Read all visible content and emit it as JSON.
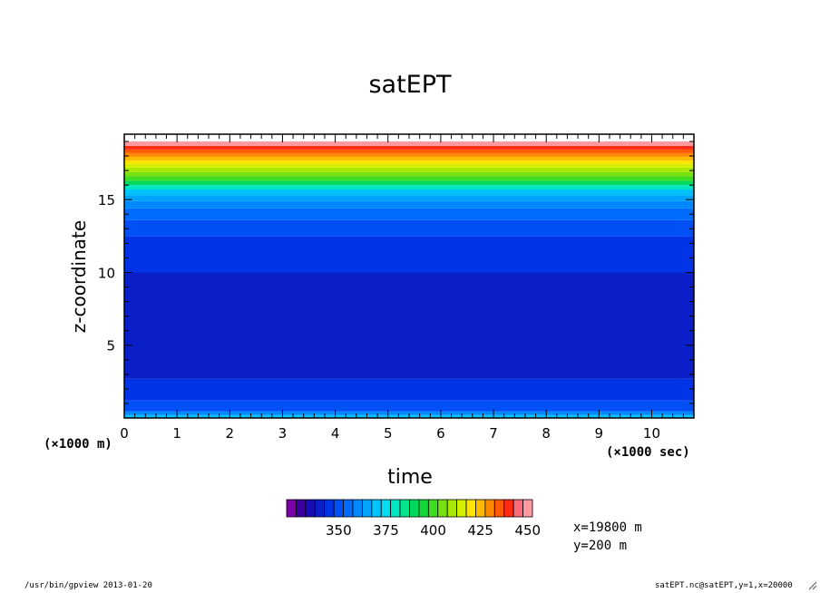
{
  "title": "satEPT",
  "xlabel": "time",
  "ylabel": "z-coordinate",
  "x_unit": "(×1000 sec)",
  "y_unit": "(×1000 m)",
  "info_x": "x=19800  m",
  "info_y": "y=200  m",
  "footer_left": "/usr/bin/gpview  2013-01-20",
  "footer_right": "satEPT.nc@satEPT,y=1,x=20000",
  "chart_data": {
    "type": "heatmap",
    "title": "satEPT",
    "xlabel": "time",
    "ylabel": "z-coordinate",
    "xlim": [
      0,
      10.8
    ],
    "ylim": [
      0,
      19.5
    ],
    "x_ticks": [
      "0",
      "1",
      "2",
      "3",
      "4",
      "5",
      "6",
      "7",
      "8",
      "9",
      "10"
    ],
    "y_ticks": [
      "5",
      "10",
      "15"
    ],
    "colorbar": {
      "ticks": [
        "350",
        "375",
        "400",
        "425",
        "450"
      ],
      "levels": [
        325,
        330,
        335,
        340,
        345,
        350,
        355,
        360,
        365,
        370,
        375,
        380,
        385,
        390,
        395,
        400,
        405,
        410,
        415,
        420,
        425,
        430,
        435,
        440,
        445,
        450
      ],
      "colors": [
        "#7b00a8",
        "#3c00a0",
        "#1a0cb4",
        "#0a1fc8",
        "#0034e6",
        "#0050f5",
        "#006cff",
        "#0088ff",
        "#00a4ff",
        "#00c2ff",
        "#00dcf0",
        "#00e8c0",
        "#00e48e",
        "#00d860",
        "#10d838",
        "#40dc20",
        "#78e010",
        "#a8e800",
        "#d4f000",
        "#ffe400",
        "#ffba00",
        "#ff8a00",
        "#ff5a00",
        "#ff2a10",
        "#ff6a78",
        "#ff9aa0"
      ]
    },
    "bands": [
      {
        "z_low": 0.0,
        "z_high": 0.2,
        "value": 370
      },
      {
        "z_low": 0.2,
        "z_high": 0.45,
        "value": 360
      },
      {
        "z_low": 0.45,
        "z_high": 1.2,
        "value": 350
      },
      {
        "z_low": 1.2,
        "z_high": 2.7,
        "value": 345
      },
      {
        "z_low": 2.7,
        "z_high": 10.0,
        "value": 340
      },
      {
        "z_low": 10.0,
        "z_high": 12.5,
        "value": 345
      },
      {
        "z_low": 12.5,
        "z_high": 13.6,
        "value": 350
      },
      {
        "z_low": 13.6,
        "z_high": 14.4,
        "value": 355
      },
      {
        "z_low": 14.4,
        "z_high": 14.9,
        "value": 360
      },
      {
        "z_low": 14.9,
        "z_high": 15.3,
        "value": 365
      },
      {
        "z_low": 15.3,
        "z_high": 15.7,
        "value": 370
      },
      {
        "z_low": 15.7,
        "z_high": 16.0,
        "value": 380
      },
      {
        "z_low": 16.0,
        "z_high": 16.3,
        "value": 390
      },
      {
        "z_low": 16.3,
        "z_high": 16.6,
        "value": 400
      },
      {
        "z_low": 16.6,
        "z_high": 16.9,
        "value": 405
      },
      {
        "z_low": 16.9,
        "z_high": 17.2,
        "value": 410
      },
      {
        "z_low": 17.2,
        "z_high": 17.45,
        "value": 415
      },
      {
        "z_low": 17.45,
        "z_high": 17.7,
        "value": 420
      },
      {
        "z_low": 17.7,
        "z_high": 17.95,
        "value": 425
      },
      {
        "z_low": 17.95,
        "z_high": 18.2,
        "value": 430
      },
      {
        "z_low": 18.2,
        "z_high": 18.45,
        "value": 435
      },
      {
        "z_low": 18.45,
        "z_high": 18.7,
        "value": 440
      },
      {
        "z_low": 18.7,
        "z_high": 19.0,
        "value": 450
      }
    ]
  }
}
